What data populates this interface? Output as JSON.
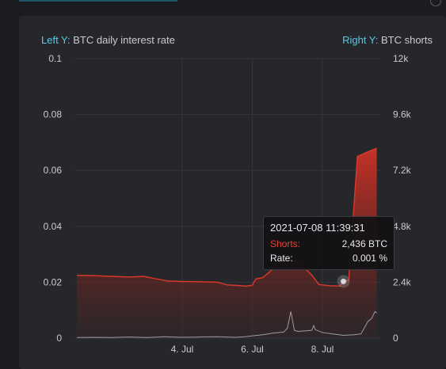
{
  "legend": {
    "left_tag": "Left Y:",
    "left_label": "BTC daily interest rate",
    "right_tag": "Right Y:",
    "right_label": "BTC shorts"
  },
  "colors": {
    "shorts": "#d8372b",
    "rate": "#9a9ca3",
    "axis_tag": "#5ac8e6",
    "background": "#26272b"
  },
  "chart_data": {
    "type": "area",
    "x_ticks": [
      "4. Jul",
      "6. Jul",
      "8. Jul"
    ],
    "x_tick_values": [
      2,
      4,
      6
    ],
    "xlim": [
      -1.05,
      7.65
    ],
    "y_left": {
      "label": "BTC daily interest rate",
      "ticks": [
        "0.1",
        "0.08",
        "0.06",
        "0.04",
        "0.02",
        "0"
      ],
      "ylim": [
        0,
        0.1
      ]
    },
    "y_right": {
      "label": "BTC shorts",
      "ticks": [
        "12k",
        "9.6k",
        "7.2k",
        "4.8k",
        "2.4k",
        "0"
      ],
      "ylim": [
        0,
        12000
      ]
    },
    "grid": true,
    "series": [
      {
        "name": "BTC shorts",
        "axis": "right",
        "x": [
          -1.0,
          -0.5,
          0.0,
          0.5,
          0.9,
          1.2,
          1.6,
          2.0,
          2.5,
          3.0,
          3.3,
          3.6,
          3.8,
          4.0,
          4.1,
          4.3,
          4.5,
          4.7,
          4.9,
          5.1,
          5.3,
          5.5,
          5.7,
          5.9,
          6.2,
          6.5,
          6.6,
          6.75,
          7.0,
          7.3,
          7.55
        ],
        "y": [
          2700,
          2680,
          2650,
          2620,
          2650,
          2560,
          2450,
          2430,
          2420,
          2400,
          2280,
          2260,
          2230,
          2270,
          2540,
          2600,
          2850,
          3150,
          3450,
          3400,
          3300,
          3000,
          2700,
          2300,
          2250,
          2230,
          2436,
          2480,
          7800,
          8000,
          8150
        ]
      },
      {
        "name": "BTC daily interest rate",
        "axis": "left",
        "x": [
          -1.0,
          -0.5,
          0.0,
          0.5,
          1.0,
          1.5,
          2.0,
          2.5,
          3.0,
          3.5,
          3.8,
          4.0,
          4.3,
          4.6,
          4.9,
          5.0,
          5.1,
          5.2,
          5.3,
          5.5,
          5.7,
          5.75,
          5.8,
          6.0,
          6.3,
          6.6,
          6.9,
          7.1,
          7.3,
          7.4,
          7.5,
          7.55
        ],
        "y": [
          0.0002,
          0.0003,
          0.0002,
          0.0004,
          0.0002,
          0.0005,
          0.0003,
          0.0004,
          0.0005,
          0.0003,
          0.0005,
          0.0008,
          0.0012,
          0.0018,
          0.0022,
          0.0035,
          0.0095,
          0.0028,
          0.0024,
          0.0026,
          0.0028,
          0.0045,
          0.003,
          0.002,
          0.0015,
          0.001,
          0.0012,
          0.0015,
          0.006,
          0.007,
          0.0095,
          0.009
        ]
      }
    ],
    "highlight": {
      "x": 6.6,
      "y_right": 2436
    }
  },
  "tooltip": {
    "date": "2021-07-08 11:39:31",
    "shorts_label": "Shorts:",
    "shorts_value": "2,436 BTC",
    "rate_label": "Rate:",
    "rate_value": "0.001 %"
  }
}
